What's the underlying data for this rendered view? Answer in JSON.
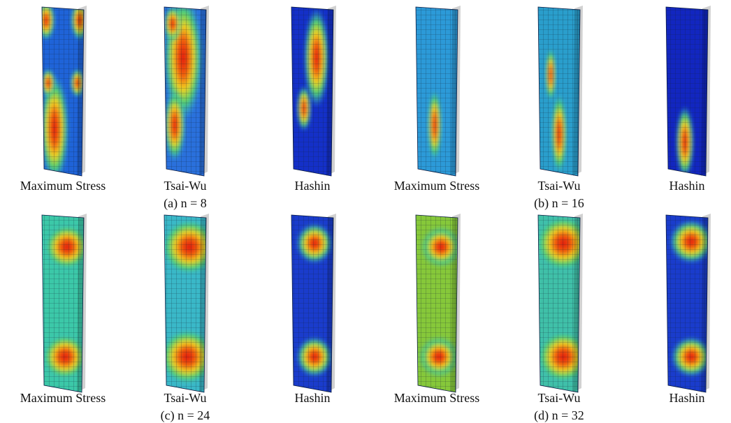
{
  "rows": [
    {
      "items": [
        "Maximum Stress",
        "Tsai-Wu",
        "Hashin",
        "Maximum Stress",
        "Tsai-Wu",
        "Hashin"
      ],
      "captions": [
        "(a) n = 8",
        "(b) n = 16"
      ]
    },
    {
      "items": [
        "Maximum Stress",
        "Tsai-Wu",
        "Hashin",
        "Maximum Stress",
        "Tsai-Wu",
        "Hashin"
      ],
      "captions": [
        "(c) n = 24",
        "(d) n = 32"
      ]
    }
  ]
}
